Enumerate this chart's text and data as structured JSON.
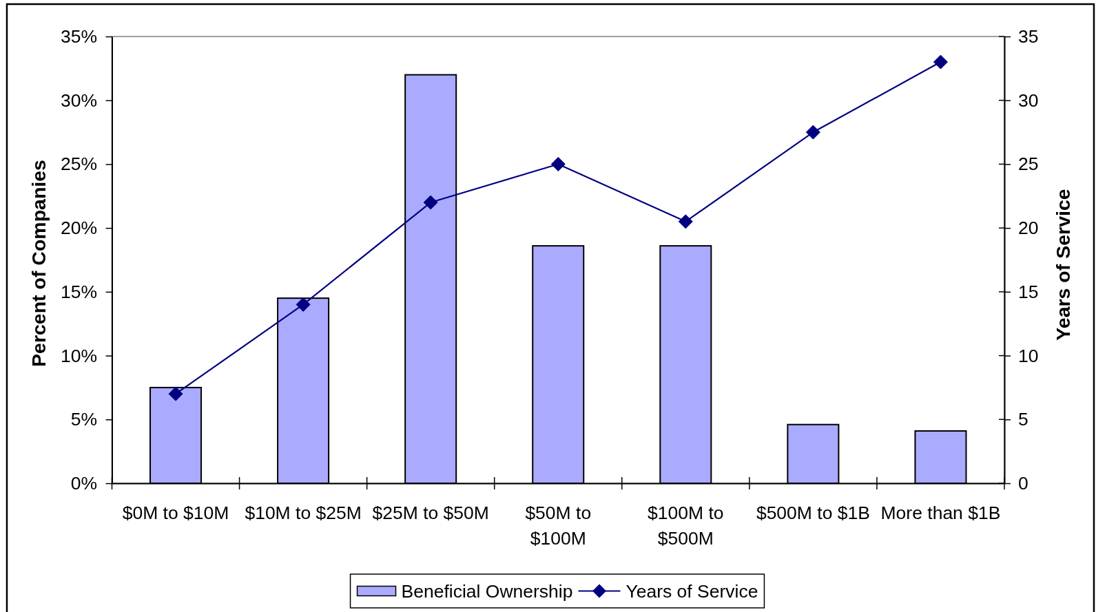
{
  "chart_data": {
    "type": "bar",
    "categories": [
      "$0M to $10M",
      "$10M to $25M",
      "$25M to $50M",
      "$50M to $100M",
      "$100M to $500M",
      "$500M to $1B",
      "More than $1B"
    ],
    "series": [
      {
        "name": "Beneficial Ownership",
        "type": "bar",
        "color": "#aaaaff",
        "values": [
          7.5,
          14.5,
          32,
          18.6,
          18.6,
          4.6,
          4.1
        ]
      },
      {
        "name": "Years of Service",
        "type": "line",
        "axis": "y2",
        "color": "#000080",
        "values": [
          7,
          14,
          22,
          25,
          20.5,
          27.5,
          33
        ]
      }
    ],
    "ylabel": "Percent of Companies",
    "y2label": "Years of Service",
    "ylim": [
      0,
      35
    ],
    "yticks": [
      {
        "value": 0,
        "label": "0%"
      },
      {
        "value": 5,
        "label": "5%"
      },
      {
        "value": 10,
        "label": "10%"
      },
      {
        "value": 15,
        "label": "15%"
      },
      {
        "value": 20,
        "label": "20%"
      },
      {
        "value": 25,
        "label": "25%"
      },
      {
        "value": 30,
        "label": "30%"
      },
      {
        "value": 35,
        "label": "35%"
      }
    ],
    "y2lim": [
      0,
      35
    ],
    "y2ticks": [
      0,
      5,
      10,
      15,
      20,
      25,
      30,
      35
    ],
    "legend": "bottom",
    "marker": "diamond"
  }
}
